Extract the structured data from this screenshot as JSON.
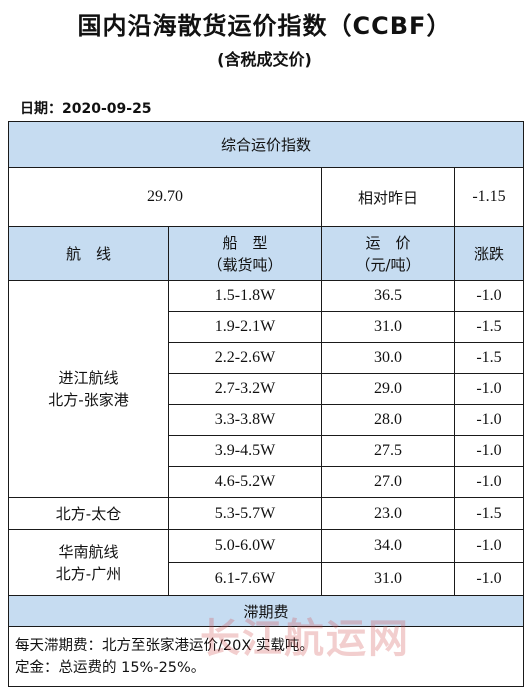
{
  "title": "国内沿海散货运价指数（CCBF）",
  "subtitle": "(含税成交价)",
  "date_label": "日期：2020-09-25",
  "composite": {
    "header": "综合运价指数",
    "value": "29.70",
    "compare_label": "相对昨日",
    "change": "-1.15"
  },
  "columns": {
    "route": "航　线",
    "ship_line1": "船　型",
    "ship_line2": "（载货吨）",
    "price_line1": "运　价",
    "price_line2": "（元/吨）",
    "change": "涨跌"
  },
  "groups": [
    {
      "route_line1": "进江航线",
      "route_line2": "北方-张家港"
    },
    {
      "route_line1": "北方-太仓",
      "route_line2": ""
    },
    {
      "route_line1": "华南航线",
      "route_line2": "北方-广州"
    }
  ],
  "rows": [
    {
      "ship": "1.5-1.8W",
      "price": "36.5",
      "change": "-1.0"
    },
    {
      "ship": "1.9-2.1W",
      "price": "31.0",
      "change": "-1.5"
    },
    {
      "ship": "2.2-2.6W",
      "price": "30.0",
      "change": "-1.5"
    },
    {
      "ship": "2.7-3.2W",
      "price": "29.0",
      "change": "-1.0"
    },
    {
      "ship": "3.3-3.8W",
      "price": "28.0",
      "change": "-1.0"
    },
    {
      "ship": "3.9-4.5W",
      "price": "27.5",
      "change": "-1.0"
    },
    {
      "ship": "4.6-5.2W",
      "price": "27.0",
      "change": "-1.0"
    },
    {
      "ship": "5.3-5.7W",
      "price": "23.0",
      "change": "-1.5"
    },
    {
      "ship": "5.0-6.0W",
      "price": "34.0",
      "change": "-1.0"
    },
    {
      "ship": "6.1-7.6W",
      "price": "31.0",
      "change": "-1.0"
    }
  ],
  "demurrage": {
    "header": "滞期费",
    "line1": "每天滞期费：北方至张家港运价/20X 实载吨。",
    "line2": "定金：总运费的 15%-25%。"
  },
  "watermark": "长江航运网"
}
